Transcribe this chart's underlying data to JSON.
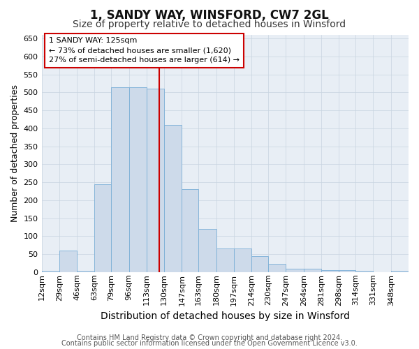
{
  "title": "1, SANDY WAY, WINSFORD, CW7 2GL",
  "subtitle": "Size of property relative to detached houses in Winsford",
  "xlabel": "Distribution of detached houses by size in Winsford",
  "ylabel": "Number of detached properties",
  "bin_labels": [
    "12sqm",
    "29sqm",
    "46sqm",
    "63sqm",
    "79sqm",
    "96sqm",
    "113sqm",
    "130sqm",
    "147sqm",
    "163sqm",
    "180sqm",
    "197sqm",
    "214sqm",
    "230sqm",
    "247sqm",
    "264sqm",
    "281sqm",
    "298sqm",
    "314sqm",
    "331sqm",
    "348sqm"
  ],
  "bin_left_edges": [
    12,
    29,
    46,
    63,
    79,
    96,
    113,
    130,
    147,
    163,
    180,
    197,
    214,
    230,
    247,
    264,
    281,
    298,
    314,
    331,
    348
  ],
  "bar_heights": [
    3,
    60,
    3,
    245,
    515,
    515,
    510,
    410,
    230,
    120,
    65,
    65,
    45,
    22,
    10,
    10,
    5,
    5,
    3,
    0,
    3
  ],
  "bar_color": "#cddaea",
  "bar_edge_color": "#7aaed6",
  "vline_x": 125,
  "vline_color": "#cc0000",
  "ylim": [
    0,
    660
  ],
  "yticks": [
    0,
    50,
    100,
    150,
    200,
    250,
    300,
    350,
    400,
    450,
    500,
    550,
    600,
    650
  ],
  "annotation_title": "1 SANDY WAY: 125sqm",
  "annotation_line1": "← 73% of detached houses are smaller (1,620)",
  "annotation_line2": "27% of semi-detached houses are larger (614) →",
  "annotation_box_facecolor": "#ffffff",
  "annotation_box_edgecolor": "#cc0000",
  "footnote1": "Contains HM Land Registry data © Crown copyright and database right 2024.",
  "footnote2": "Contains public sector information licensed under the Open Government Licence v3.0.",
  "fig_facecolor": "#ffffff",
  "plot_facecolor": "#e8eef5",
  "grid_color": "#c8d4e0",
  "title_fontsize": 12,
  "subtitle_fontsize": 10,
  "ylabel_fontsize": 9,
  "xlabel_fontsize": 10,
  "tick_fontsize": 8,
  "annot_fontsize": 8,
  "footnote_fontsize": 7
}
